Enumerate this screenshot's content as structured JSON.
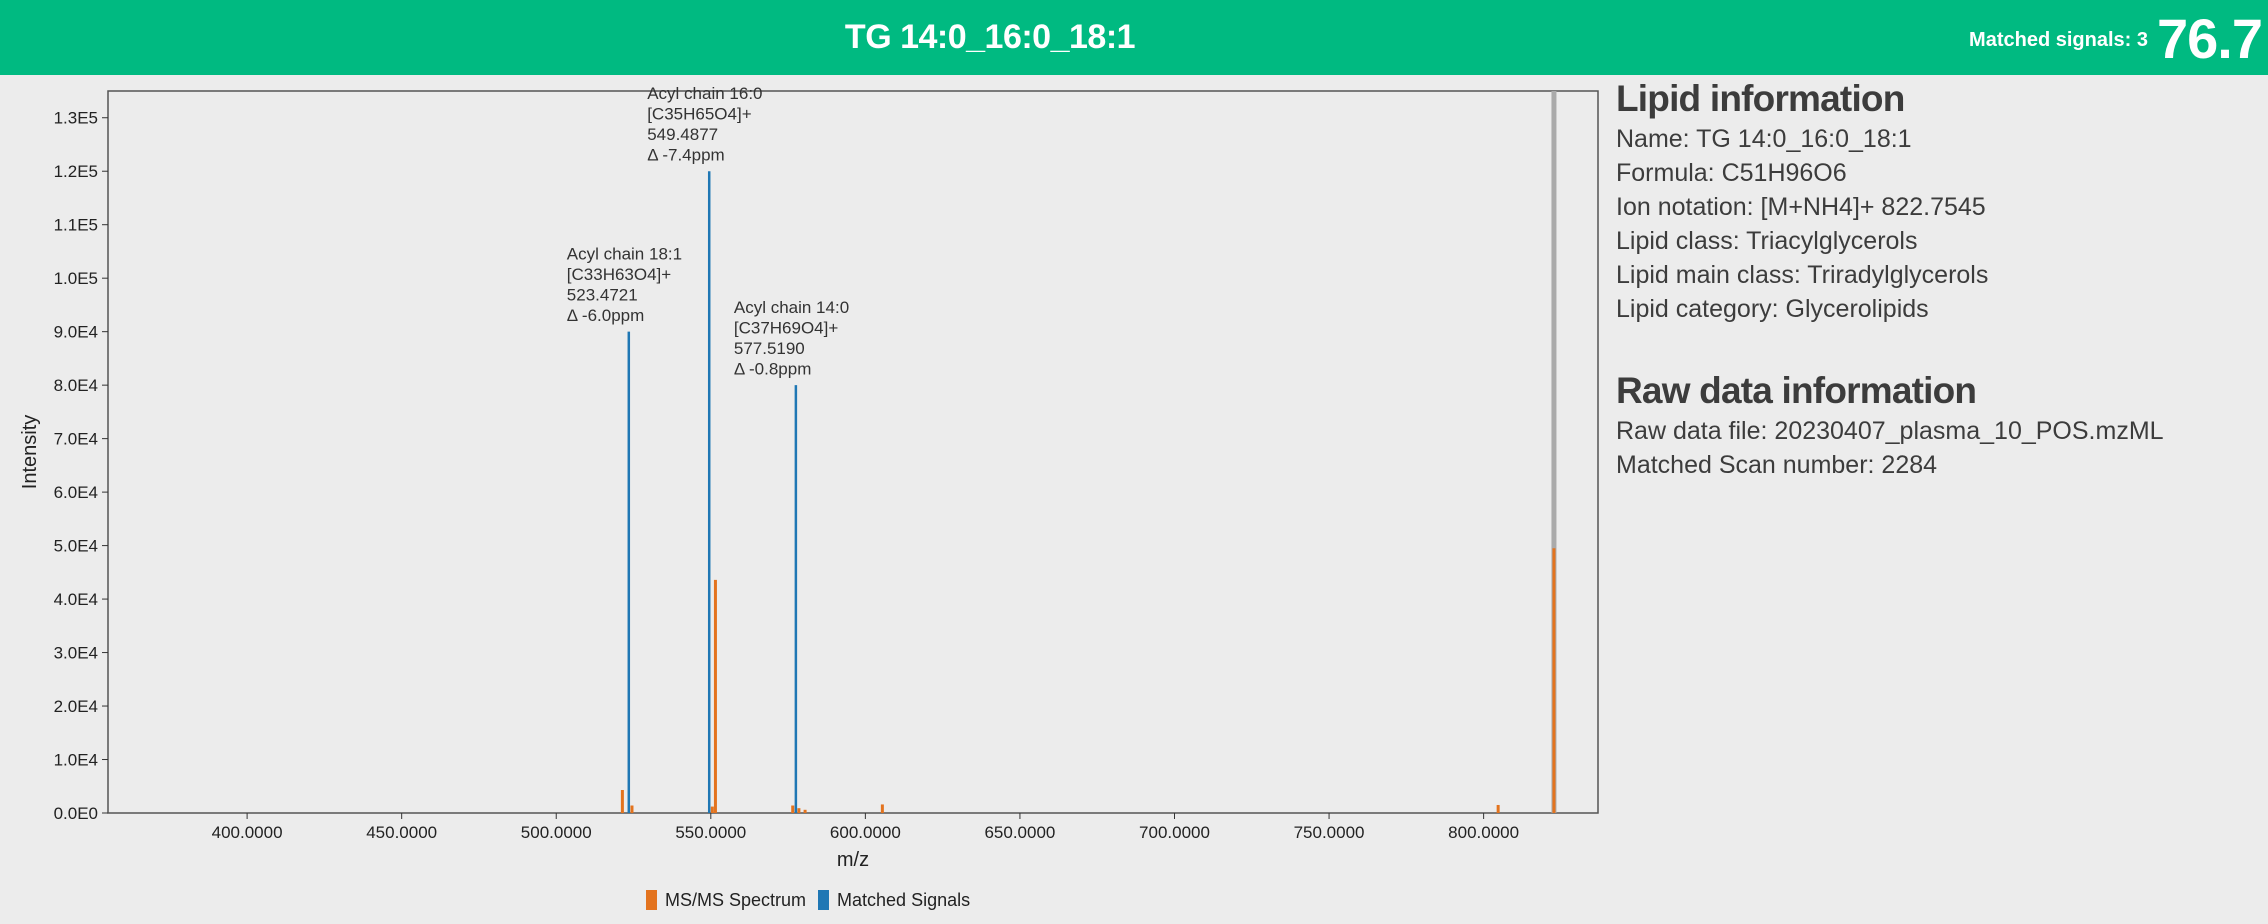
{
  "header": {
    "title": "TG 14:0_16:0_18:1",
    "matched_label": "Matched signals:",
    "matched_count": "3",
    "score": "76.7",
    "color": "#00ba81"
  },
  "info": {
    "lipid_title": "Lipid information",
    "name": "Name: TG 14:0_16:0_18:1",
    "formula": "Formula: C51H96O6",
    "ion": "Ion notation: [M+NH4]+ 822.7545",
    "class": "Lipid class: Triacylglycerols",
    "main_class": "Lipid main class: Triradylglycerols",
    "category": "Lipid category: Glycerolipids",
    "raw_title": "Raw data information",
    "raw_file": "Raw data file: 20230407_plasma_10_POS.mzML",
    "scan": "Matched Scan number: 2284"
  },
  "legend": {
    "spectrum_label": "MS/MS Spectrum",
    "matched_label": "Matched Signals",
    "spectrum_color": "#e3731e",
    "matched_color": "#1f77b4"
  },
  "chart_data": {
    "type": "bar",
    "xlabel": "m/z",
    "ylabel": "Intensity",
    "xlim": [
      355,
      837
    ],
    "ylim": [
      0,
      135000
    ],
    "x_ticks": [
      {
        "value": 400,
        "label": "400.0000"
      },
      {
        "value": 450,
        "label": "450.0000"
      },
      {
        "value": 500,
        "label": "500.0000"
      },
      {
        "value": 550,
        "label": "550.0000"
      },
      {
        "value": 600,
        "label": "600.0000"
      },
      {
        "value": 650,
        "label": "650.0000"
      },
      {
        "value": 700,
        "label": "700.0000"
      },
      {
        "value": 750,
        "label": "750.0000"
      },
      {
        "value": 800,
        "label": "800.0000"
      }
    ],
    "y_ticks": [
      {
        "value": 0,
        "label": "0.0E0"
      },
      {
        "value": 10000,
        "label": "1.0E4"
      },
      {
        "value": 20000,
        "label": "2.0E4"
      },
      {
        "value": 30000,
        "label": "3.0E4"
      },
      {
        "value": 40000,
        "label": "4.0E4"
      },
      {
        "value": 50000,
        "label": "5.0E4"
      },
      {
        "value": 60000,
        "label": "6.0E4"
      },
      {
        "value": 70000,
        "label": "7.0E4"
      },
      {
        "value": 80000,
        "label": "8.0E4"
      },
      {
        "value": 90000,
        "label": "9.0E4"
      },
      {
        "value": 100000,
        "label": "1.0E5"
      },
      {
        "value": 110000,
        "label": "1.1E5"
      },
      {
        "value": 120000,
        "label": "1.2E5"
      },
      {
        "value": 130000,
        "label": "1.3E5"
      }
    ],
    "precursor_mz": 822.75,
    "series": [
      {
        "name": "MS/MS Spectrum",
        "color": "#e3731e",
        "x": [
          521.4,
          524.5,
          550.5,
          551.5,
          576.5,
          578.5,
          580.5,
          605.5,
          804.7,
          822.75
        ],
        "y": [
          4300,
          1400,
          1200,
          43600,
          1400,
          900,
          600,
          1600,
          1500,
          49500
        ]
      },
      {
        "name": "Matched Signals",
        "color": "#1f77b4",
        "x": [
          523.4721,
          549.4877,
          577.519
        ],
        "y": [
          90000,
          120000,
          80000
        ],
        "annotations": [
          [
            "Acyl chain 18:1",
            "[C33H63O4]+",
            "523.4721",
            "Δ -6.0ppm"
          ],
          [
            "Acyl chain 16:0",
            "[C35H65O4]+",
            "549.4877",
            "Δ -7.4ppm"
          ],
          [
            "Acyl chain 14:0",
            "[C37H69O4]+",
            "577.5190",
            "Δ -0.8ppm"
          ]
        ]
      }
    ]
  }
}
